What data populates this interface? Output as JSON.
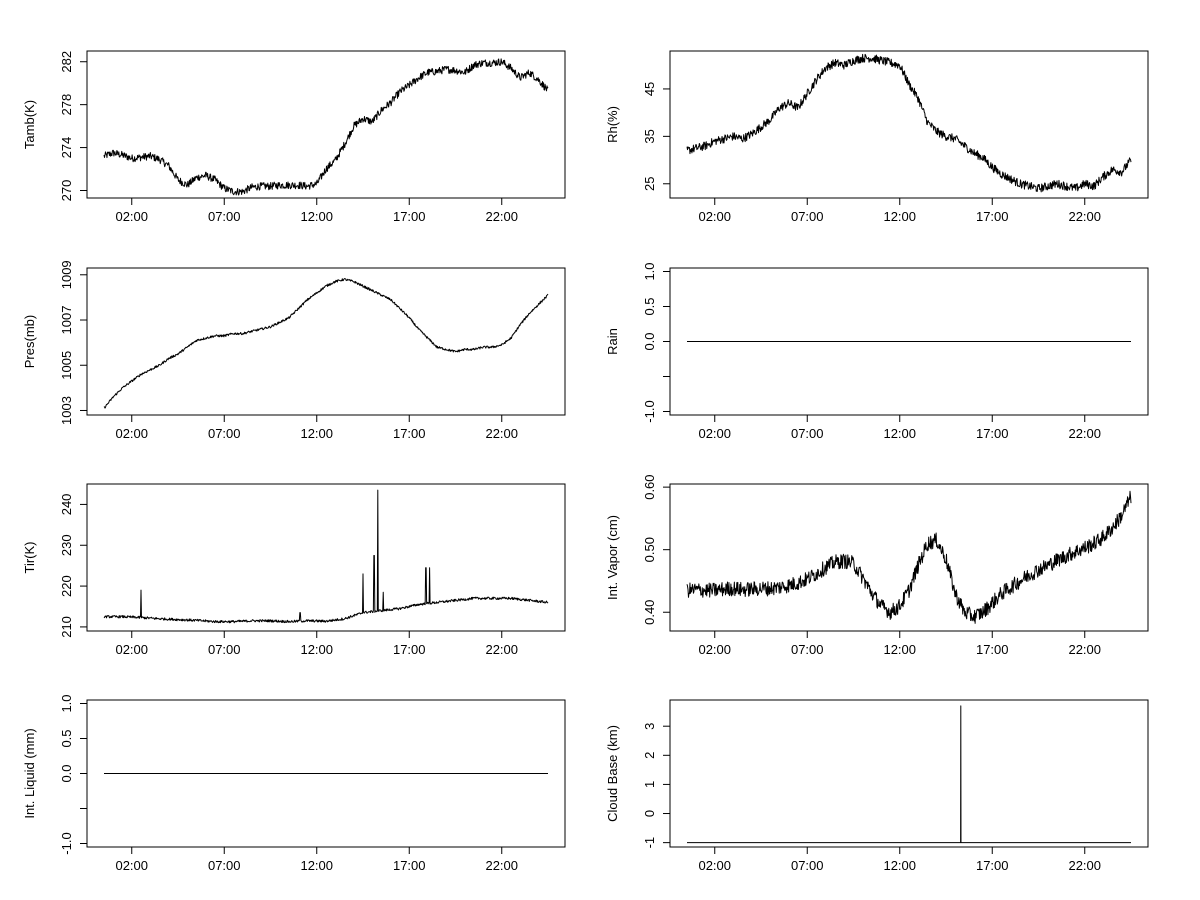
{
  "chart_data": [
    {
      "type": "line",
      "ylabel": "Tamb(K)",
      "xlabel": "",
      "x_ticks": [
        "02:00",
        "07:00",
        "12:00",
        "17:00",
        "22:00"
      ],
      "xlim": [
        0.0,
        24.0
      ],
      "ylim": [
        269.3,
        283.0
      ],
      "y_ticks": [
        270,
        274,
        278,
        282
      ],
      "noise": 0.35,
      "x": [
        0.0,
        0.5,
        1.0,
        1.5,
        2.0,
        2.5,
        3.0,
        3.5,
        4.0,
        4.5,
        5.0,
        5.5,
        6.0,
        6.5,
        7.0,
        7.5,
        8.0,
        8.5,
        9.0,
        9.5,
        10.0,
        10.5,
        11.0,
        11.5,
        12.0,
        12.5,
        13.0,
        13.5,
        14.0,
        14.5,
        15.0,
        15.5,
        16.0,
        16.5,
        17.0,
        17.5,
        18.0,
        18.5,
        19.0,
        19.5,
        20.0,
        20.5,
        21.0,
        21.5,
        22.0,
        22.5,
        23.0,
        23.5,
        24.0
      ],
      "values": [
        273.2,
        273.5,
        273.3,
        273.0,
        273.1,
        273.2,
        272.9,
        272.3,
        271.0,
        270.5,
        271.2,
        271.4,
        271.0,
        270.2,
        269.9,
        269.9,
        270.3,
        270.4,
        270.4,
        270.5,
        270.5,
        270.5,
        270.4,
        270.6,
        272.0,
        272.8,
        274.3,
        276.0,
        276.7,
        276.4,
        277.5,
        278.2,
        279.2,
        279.8,
        280.5,
        281.0,
        281.1,
        281.3,
        281.2,
        281.0,
        281.7,
        281.9,
        281.9,
        282.0,
        281.4,
        280.5,
        281.0,
        280.3,
        279.3
      ]
    },
    {
      "type": "line",
      "ylabel": "Rh(%)",
      "xlabel": "",
      "x_ticks": [
        "02:00",
        "07:00",
        "12:00",
        "17:00",
        "22:00"
      ],
      "xlim": [
        0.0,
        24.0
      ],
      "ylim": [
        22.0,
        53.0
      ],
      "y_ticks": [
        25,
        35,
        45
      ],
      "noise": 0.9,
      "x": [
        0.0,
        0.5,
        1.0,
        1.5,
        2.0,
        2.5,
        3.0,
        3.5,
        4.0,
        4.5,
        5.0,
        5.5,
        6.0,
        6.5,
        7.0,
        7.5,
        8.0,
        8.5,
        9.0,
        9.5,
        10.0,
        10.5,
        11.0,
        11.5,
        12.0,
        12.5,
        13.0,
        13.5,
        14.0,
        14.5,
        15.0,
        15.5,
        16.0,
        16.5,
        17.0,
        17.5,
        18.0,
        18.5,
        19.0,
        19.5,
        20.0,
        20.5,
        21.0,
        21.5,
        22.0,
        22.5,
        23.0,
        23.5,
        24.0
      ],
      "values": [
        32.0,
        32.5,
        33.0,
        34.0,
        34.5,
        35.0,
        34.5,
        35.5,
        37.0,
        38.5,
        41.0,
        42.0,
        41.0,
        44.0,
        47.0,
        49.5,
        50.5,
        50.0,
        51.0,
        51.5,
        51.5,
        51.0,
        50.5,
        50.0,
        46.0,
        43.0,
        38.0,
        36.0,
        35.0,
        34.5,
        33.0,
        31.5,
        30.5,
        28.5,
        27.0,
        26.0,
        25.0,
        24.5,
        24.0,
        24.5,
        25.0,
        24.5,
        24.0,
        25.0,
        24.5,
        26.5,
        28.0,
        27.5,
        30.0
      ]
    },
    {
      "type": "line",
      "ylabel": "Pres(mb)",
      "xlabel": "",
      "x_ticks": [
        "02:00",
        "07:00",
        "12:00",
        "17:00",
        "22:00"
      ],
      "xlim": [
        0.0,
        24.0
      ],
      "ylim": [
        1002.8,
        1009.3
      ],
      "y_ticks": [
        1003,
        1005,
        1007,
        1009
      ],
      "noise": 0.05,
      "x": [
        0.0,
        0.5,
        1.0,
        1.5,
        2.0,
        2.5,
        3.0,
        3.5,
        4.0,
        4.5,
        5.0,
        5.5,
        6.0,
        6.5,
        7.0,
        7.5,
        8.0,
        8.5,
        9.0,
        9.5,
        10.0,
        10.5,
        11.0,
        11.5,
        12.0,
        12.5,
        13.0,
        13.5,
        14.0,
        14.5,
        15.0,
        15.5,
        16.0,
        16.5,
        17.0,
        17.5,
        18.0,
        18.5,
        19.0,
        19.5,
        20.0,
        20.5,
        21.0,
        21.5,
        22.0,
        22.5,
        23.0,
        23.5,
        24.0
      ],
      "values": [
        1003.1,
        1003.6,
        1004.0,
        1004.3,
        1004.6,
        1004.8,
        1005.0,
        1005.3,
        1005.5,
        1005.8,
        1006.1,
        1006.2,
        1006.3,
        1006.3,
        1006.4,
        1006.4,
        1006.5,
        1006.6,
        1006.7,
        1006.9,
        1007.1,
        1007.5,
        1007.9,
        1008.2,
        1008.5,
        1008.7,
        1008.8,
        1008.7,
        1008.5,
        1008.3,
        1008.1,
        1007.9,
        1007.5,
        1007.1,
        1006.6,
        1006.2,
        1005.8,
        1005.7,
        1005.6,
        1005.7,
        1005.7,
        1005.8,
        1005.8,
        1005.9,
        1006.2,
        1006.8,
        1007.3,
        1007.7,
        1008.1
      ]
    },
    {
      "type": "line",
      "ylabel": "Rain",
      "xlabel": "",
      "x_ticks": [
        "02:00",
        "07:00",
        "12:00",
        "17:00",
        "22:00"
      ],
      "xlim": [
        0.0,
        24.0
      ],
      "ylim": [
        -1.05,
        1.05
      ],
      "y_ticks": [
        -1.0,
        -0.5,
        0.0,
        0.5,
        1.0
      ],
      "y_tick_labels": [
        "-1.0",
        "",
        "0.0",
        "0.5",
        "1.0"
      ],
      "noise": 0,
      "x": [
        0.0,
        24.0
      ],
      "values": [
        0.0,
        0.0
      ]
    },
    {
      "type": "line",
      "ylabel": "Tir(K)",
      "xlabel": "",
      "x_ticks": [
        "02:00",
        "07:00",
        "12:00",
        "17:00",
        "22:00"
      ],
      "xlim": [
        0.0,
        24.0
      ],
      "ylim": [
        209.0,
        245.0
      ],
      "y_ticks": [
        210,
        220,
        230,
        240
      ],
      "noise": 0.3,
      "x": [
        0.0,
        1.0,
        2.0,
        3.0,
        4.0,
        5.0,
        6.0,
        7.0,
        8.0,
        9.0,
        10.0,
        11.0,
        12.0,
        13.0,
        14.0,
        15.0,
        16.0,
        17.0,
        18.0,
        19.0,
        20.0,
        21.0,
        22.0,
        23.0,
        24.0
      ],
      "values": [
        212.5,
        212.5,
        212.3,
        212.0,
        211.8,
        211.6,
        211.3,
        211.3,
        211.5,
        211.5,
        211.3,
        211.5,
        211.4,
        212.0,
        213.5,
        214.0,
        214.5,
        215.5,
        216.0,
        216.5,
        217.0,
        217.0,
        217.0,
        216.5,
        216.0
      ],
      "spikes": [
        [
          2.0,
          219.0
        ],
        [
          10.6,
          213.5
        ],
        [
          14.0,
          223.0
        ],
        [
          14.6,
          227.5
        ],
        [
          14.8,
          243.5
        ],
        [
          15.1,
          218.5
        ],
        [
          17.4,
          224.5
        ],
        [
          17.6,
          224.5
        ]
      ]
    },
    {
      "type": "line",
      "ylabel": "Int. Vapor (cm)",
      "xlabel": "",
      "x_ticks": [
        "02:00",
        "07:00",
        "12:00",
        "17:00",
        "22:00"
      ],
      "xlim": [
        0.0,
        24.0
      ],
      "ylim": [
        0.37,
        0.605
      ],
      "y_ticks": [
        0.4,
        0.5,
        0.6
      ],
      "y_tick_labels": [
        "0.40",
        "0.50",
        "0.60"
      ],
      "noise": 0.012,
      "x": [
        0.0,
        0.5,
        1.0,
        1.5,
        2.0,
        2.5,
        3.0,
        3.5,
        4.0,
        4.5,
        5.0,
        5.5,
        6.0,
        6.5,
        7.0,
        7.5,
        8.0,
        8.5,
        9.0,
        9.5,
        10.0,
        10.5,
        11.0,
        11.5,
        12.0,
        12.5,
        13.0,
        13.5,
        14.0,
        14.5,
        15.0,
        15.5,
        16.0,
        16.5,
        17.0,
        17.5,
        18.0,
        18.5,
        19.0,
        19.5,
        20.0,
        20.5,
        21.0,
        21.5,
        22.0,
        22.5,
        23.0,
        23.5,
        24.0
      ],
      "values": [
        0.435,
        0.436,
        0.435,
        0.435,
        0.437,
        0.438,
        0.436,
        0.437,
        0.438,
        0.438,
        0.44,
        0.443,
        0.447,
        0.453,
        0.462,
        0.472,
        0.48,
        0.482,
        0.478,
        0.455,
        0.43,
        0.41,
        0.4,
        0.41,
        0.435,
        0.475,
        0.51,
        0.515,
        0.485,
        0.43,
        0.4,
        0.393,
        0.4,
        0.415,
        0.43,
        0.44,
        0.45,
        0.46,
        0.468,
        0.475,
        0.483,
        0.49,
        0.497,
        0.503,
        0.51,
        0.52,
        0.535,
        0.555,
        0.585
      ]
    },
    {
      "type": "line",
      "ylabel": "Int. Liquid (mm)",
      "xlabel": "",
      "x_ticks": [
        "02:00",
        "07:00",
        "12:00",
        "17:00",
        "22:00"
      ],
      "xlim": [
        0.0,
        24.0
      ],
      "ylim": [
        -1.05,
        1.05
      ],
      "y_ticks": [
        -1.0,
        -0.5,
        0.0,
        0.5,
        1.0
      ],
      "y_tick_labels": [
        "-1.0",
        "",
        "0.0",
        "0.5",
        "1.0"
      ],
      "noise": 0,
      "x": [
        0.0,
        24.0
      ],
      "values": [
        0.0,
        0.0
      ]
    },
    {
      "type": "line",
      "ylabel": "Cloud Base (km)",
      "xlabel": "",
      "x_ticks": [
        "02:00",
        "07:00",
        "12:00",
        "17:00",
        "22:00"
      ],
      "xlim": [
        0.0,
        24.0
      ],
      "ylim": [
        -1.15,
        3.9
      ],
      "y_ticks": [
        -1,
        0,
        1,
        2,
        3
      ],
      "noise": 0,
      "x": [
        0.0,
        14.79,
        14.8,
        14.81,
        24.0
      ],
      "values": [
        -1.0,
        -1.0,
        3.7,
        -1.0,
        -1.0
      ]
    }
  ]
}
